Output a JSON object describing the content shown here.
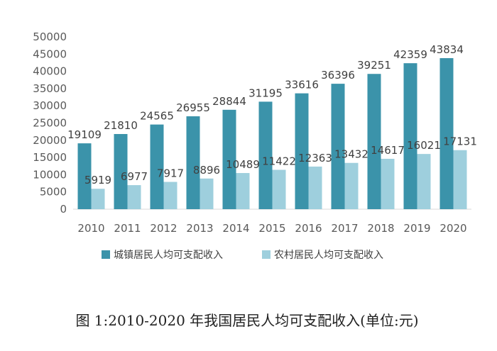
{
  "chart_data": {
    "type": "bar",
    "categories": [
      "2010",
      "2011",
      "2012",
      "2013",
      "2014",
      "2015",
      "2016",
      "2017",
      "2018",
      "2019",
      "2020"
    ],
    "series": [
      {
        "name": "城镇居民人均可支配收入",
        "color": "#3b93aa",
        "values": [
          19109,
          21810,
          24565,
          26955,
          28844,
          31195,
          33616,
          36396,
          39251,
          42359,
          43834
        ]
      },
      {
        "name": "农村居民人均可支配收入",
        "color": "#9ecfdd",
        "values": [
          5919,
          6977,
          7917,
          8896,
          10489,
          11422,
          12363,
          13432,
          14617,
          16021,
          17131
        ]
      }
    ],
    "ylim": [
      0,
      50000
    ],
    "yticks": [
      0,
      5000,
      10000,
      15000,
      20000,
      25000,
      30000,
      35000,
      40000,
      45000,
      50000
    ],
    "grid": false,
    "legend_position": "bottom",
    "caption": "图 1:2010-2020 年我国居民人均可支配收入(单位:元)"
  }
}
